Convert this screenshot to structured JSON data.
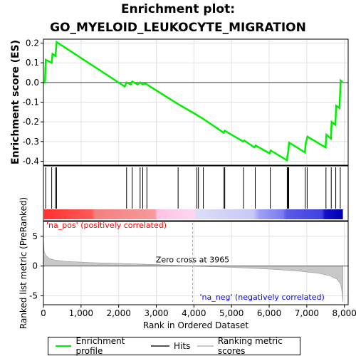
{
  "title_line1": "Enrichment plot:",
  "title_line2": "GO_MYELOID_LEUKOCYTE_MIGRATION",
  "colors": {
    "es_line": "#00ee00",
    "hits": "#000000",
    "metric": "#c8c8c8",
    "pos_label": "#ff0000",
    "neg_label": "#0000ff",
    "zero_line": "#aaaaaa"
  },
  "legend": {
    "enrichment_profile": "Enrichment profile",
    "hits": "Hits",
    "ranking_metric_scores": "Ranking metric scores"
  },
  "chart_data": [
    {
      "type": "line",
      "title": "Enrichment plot: GO_MYELOID_LEUKOCYTE_MIGRATION",
      "ylabel": "Enrichment score (ES)",
      "xlim": [
        0,
        8100
      ],
      "ylim": [
        -0.42,
        0.22
      ],
      "yticks": [
        0.2,
        0.1,
        0.0,
        -0.1,
        -0.2,
        -0.3,
        -0.4
      ],
      "ytick_labels": [
        "0.2",
        "0.1",
        "0.0",
        "-0.1",
        "-0.2",
        "-0.3",
        "-0.4"
      ],
      "grid": true,
      "series": [
        {
          "name": "Enrichment profile",
          "points": [
            [
              0,
              0.0
            ],
            [
              40,
              0.0
            ],
            [
              60,
              0.115
            ],
            [
              220,
              0.1
            ],
            [
              240,
              0.145
            ],
            [
              320,
              0.135
            ],
            [
              350,
              0.205
            ],
            [
              2160,
              -0.02
            ],
            [
              2210,
              0.0
            ],
            [
              2320,
              -0.01
            ],
            [
              2360,
              0.005
            ],
            [
              2500,
              -0.01
            ],
            [
              2570,
              0.0
            ],
            [
              2640,
              -0.01
            ],
            [
              2700,
              -0.005
            ],
            [
              2750,
              -0.01
            ],
            [
              3580,
              -0.11
            ],
            [
              4080,
              -0.165
            ],
            [
              4120,
              -0.17
            ],
            [
              4250,
              -0.185
            ],
            [
              4790,
              -0.255
            ],
            [
              4820,
              -0.245
            ],
            [
              5310,
              -0.3
            ],
            [
              5340,
              -0.295
            ],
            [
              5610,
              -0.33
            ],
            [
              5640,
              -0.32
            ],
            [
              6010,
              -0.36
            ],
            [
              6040,
              -0.345
            ],
            [
              6470,
              -0.395
            ],
            [
              6490,
              -0.37
            ],
            [
              6510,
              -0.345
            ],
            [
              6530,
              -0.305
            ],
            [
              6950,
              -0.355
            ],
            [
              6970,
              -0.31
            ],
            [
              7020,
              -0.275
            ],
            [
              7500,
              -0.33
            ],
            [
              7520,
              -0.265
            ],
            [
              7640,
              -0.285
            ],
            [
              7660,
              -0.2
            ],
            [
              7760,
              -0.215
            ],
            [
              7780,
              -0.118
            ],
            [
              7870,
              -0.13
            ],
            [
              7900,
              0.01
            ],
            [
              7960,
              0.0
            ]
          ]
        }
      ]
    },
    {
      "type": "hits",
      "series_name": "Hits",
      "xlim": [
        0,
        8100
      ],
      "positions": [
        60,
        220,
        320,
        350,
        2210,
        2360,
        2570,
        2640,
        2750,
        3580,
        4080,
        4120,
        4250,
        4800,
        4820,
        5320,
        5630,
        6030,
        6480,
        6500,
        6520,
        6960,
        7010,
        7510,
        7650,
        7770,
        7890
      ]
    },
    {
      "type": "area",
      "ylabel": "Ranked list metric (PreRanked)",
      "xlabel": "Rank in Ordered Dataset",
      "xlim": [
        0,
        8100
      ],
      "ylim": [
        -6.5,
        7.5
      ],
      "xticks": [
        0,
        1000,
        2000,
        3000,
        4000,
        5000,
        6000,
        7000,
        8000
      ],
      "xtick_labels": [
        "0",
        "1,000",
        "2,000",
        "3,000",
        "4,000",
        "5,000",
        "6,000",
        "7,000",
        "8,000"
      ],
      "yticks": [
        5,
        0,
        -5
      ],
      "ytick_labels": [
        "5",
        "0",
        "-5"
      ],
      "series": [
        {
          "name": "Ranking metric scores",
          "points": [
            [
              0,
              4.5
            ],
            [
              20,
              2.5
            ],
            [
              60,
              1.8
            ],
            [
              150,
              1.3
            ],
            [
              300,
              1.0
            ],
            [
              600,
              0.8
            ],
            [
              1200,
              0.6
            ],
            [
              2000,
              0.45
            ],
            [
              3000,
              0.25
            ],
            [
              3965,
              0.0
            ],
            [
              5000,
              -0.2
            ],
            [
              6000,
              -0.5
            ],
            [
              6800,
              -0.85
            ],
            [
              7300,
              -1.2
            ],
            [
              7600,
              -1.6
            ],
            [
              7800,
              -2.2
            ],
            [
              7900,
              -3.0
            ],
            [
              7940,
              -4.5
            ],
            [
              7960,
              -6.0
            ]
          ]
        }
      ],
      "annotations": {
        "pos_label": "'na_pos' (positively correlated)",
        "neg_label": "'na_neg' (negatively correlated)",
        "zero_cross": "Zero cross at 3965",
        "zero_cross_rank": 3965
      }
    }
  ]
}
